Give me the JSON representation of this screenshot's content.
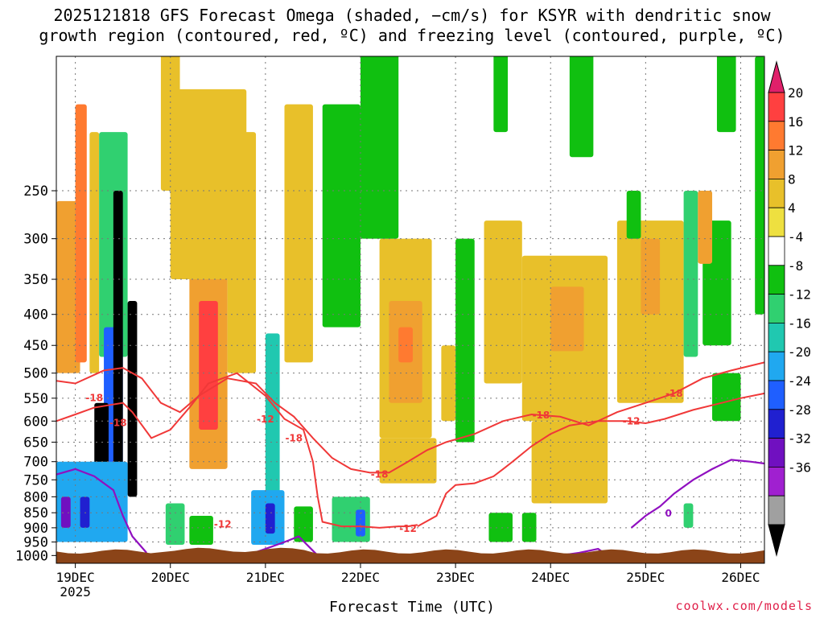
{
  "chart_data": {
    "type": "heatmap",
    "title_line1": "2025121818 GFS Forecast Omega (shaded, −cm/s) for KSYR with dendritic snow",
    "title_line2": "growth region (contoured, red, ºC) and freezing level (contoured, purple, ºC)",
    "xlabel": "Forecast Time (UTC)",
    "xlim": [
      18.8,
      26.25
    ],
    "x_ticks": [
      {
        "v": 19,
        "label": "19DEC"
      },
      {
        "v": 20,
        "label": "20DEC"
      },
      {
        "v": 21,
        "label": "21DEC"
      },
      {
        "v": 22,
        "label": "22DEC"
      },
      {
        "v": 23,
        "label": "23DEC"
      },
      {
        "v": 24,
        "label": "24DEC"
      },
      {
        "v": 25,
        "label": "25DEC"
      },
      {
        "v": 26,
        "label": "26DEC"
      }
    ],
    "x_sublabel": "2025",
    "y_ticks": [
      250,
      300,
      350,
      400,
      450,
      500,
      550,
      600,
      650,
      700,
      750,
      800,
      850,
      900,
      950,
      1000
    ],
    "colorbar_levels": [
      20,
      16,
      12,
      8,
      4,
      -4,
      -8,
      -12,
      -16,
      -20,
      -24,
      -28,
      -32,
      -36
    ],
    "colorbar_colors": [
      "#e0206a",
      "#ff4040",
      "#ff7a30",
      "#f0a030",
      "#e8c02a",
      "#eee040",
      "#ffffff",
      "#10c010",
      "#30d070",
      "#20c8b0",
      "#20a8f0",
      "#1f5fff",
      "#2020d0",
      "#7010c0",
      "#a020d0",
      "#a0a0a0",
      "#000000"
    ],
    "omega_cells": [
      {
        "x0": 18.8,
        "x1": 19.05,
        "p0": 260,
        "p1": 500,
        "v": 12
      },
      {
        "x0": 19.0,
        "x1": 19.12,
        "p0": 180,
        "p1": 480,
        "v": 16
      },
      {
        "x0": 19.15,
        "x1": 19.25,
        "p0": 200,
        "p1": 500,
        "v": 8
      },
      {
        "x0": 19.25,
        "x1": 19.55,
        "p0": 200,
        "p1": 470,
        "v": -14
      },
      {
        "x0": 19.3,
        "x1": 19.5,
        "p0": 420,
        "p1": 900,
        "v": -26
      },
      {
        "x0": 19.2,
        "x1": 19.35,
        "p0": 560,
        "p1": 880,
        "v": -36
      },
      {
        "x0": 19.4,
        "x1": 19.5,
        "p0": 250,
        "p1": 820,
        "v": -36
      },
      {
        "x0": 19.55,
        "x1": 19.65,
        "p0": 380,
        "p1": 800,
        "v": -36
      },
      {
        "x0": 18.8,
        "x1": 19.55,
        "p0": 700,
        "p1": 950,
        "v": -20
      },
      {
        "x0": 18.85,
        "x1": 18.95,
        "p0": 800,
        "p1": 900,
        "v": -32
      },
      {
        "x0": 19.05,
        "x1": 19.15,
        "p0": 800,
        "p1": 900,
        "v": -28
      },
      {
        "x0": 20.2,
        "x1": 20.6,
        "p0": 280,
        "p1": 720,
        "v": 12
      },
      {
        "x0": 20.3,
        "x1": 20.5,
        "p0": 380,
        "p1": 620,
        "v": 20
      },
      {
        "x0": 20.0,
        "x1": 20.75,
        "p0": 250,
        "p1": 350,
        "v": 6
      },
      {
        "x0": 19.95,
        "x1": 20.15,
        "p0": 820,
        "p1": 960,
        "v": -14
      },
      {
        "x0": 20.2,
        "x1": 20.45,
        "p0": 860,
        "p1": 960,
        "v": -10
      },
      {
        "x0": 20.0,
        "x1": 20.8,
        "p0": 170,
        "p1": 280,
        "v": 5
      },
      {
        "x0": 21.0,
        "x1": 21.15,
        "p0": 430,
        "p1": 900,
        "v": -16
      },
      {
        "x0": 20.85,
        "x1": 21.2,
        "p0": 780,
        "p1": 960,
        "v": -22
      },
      {
        "x0": 21.0,
        "x1": 21.1,
        "p0": 820,
        "p1": 920,
        "v": -28
      },
      {
        "x0": 21.3,
        "x1": 21.5,
        "p0": 830,
        "p1": 950,
        "v": -10
      },
      {
        "x0": 20.6,
        "x1": 20.9,
        "p0": 200,
        "p1": 500,
        "v": 6
      },
      {
        "x0": 21.2,
        "x1": 21.5,
        "p0": 180,
        "p1": 480,
        "v": 5
      },
      {
        "x0": 21.6,
        "x1": 22.0,
        "p0": 180,
        "p1": 420,
        "v": -10
      },
      {
        "x0": 21.7,
        "x1": 22.1,
        "p0": 800,
        "p1": 950,
        "v": -12
      },
      {
        "x0": 21.95,
        "x1": 22.05,
        "p0": 840,
        "p1": 930,
        "v": -26
      },
      {
        "x0": 22.2,
        "x1": 22.75,
        "p0": 300,
        "p1": 640,
        "v": 6
      },
      {
        "x0": 22.3,
        "x1": 22.65,
        "p0": 380,
        "p1": 560,
        "v": 12
      },
      {
        "x0": 22.4,
        "x1": 22.55,
        "p0": 420,
        "p1": 480,
        "v": 16
      },
      {
        "x0": 22.2,
        "x1": 22.8,
        "p0": 640,
        "p1": 760,
        "v": 5
      },
      {
        "x0": 23.0,
        "x1": 23.2,
        "p0": 300,
        "p1": 650,
        "v": -8
      },
      {
        "x0": 23.3,
        "x1": 23.7,
        "p0": 280,
        "p1": 520,
        "v": 5
      },
      {
        "x0": 23.35,
        "x1": 23.6,
        "p0": 850,
        "p1": 950,
        "v": -10
      },
      {
        "x0": 23.7,
        "x1": 23.85,
        "p0": 850,
        "p1": 950,
        "v": -10
      },
      {
        "x0": 23.7,
        "x1": 24.6,
        "p0": 320,
        "p1": 600,
        "v": 6
      },
      {
        "x0": 24.0,
        "x1": 24.35,
        "p0": 360,
        "p1": 460,
        "v": 10
      },
      {
        "x0": 23.8,
        "x1": 24.6,
        "p0": 600,
        "p1": 820,
        "v": 5
      },
      {
        "x0": 24.7,
        "x1": 25.4,
        "p0": 280,
        "p1": 560,
        "v": 6
      },
      {
        "x0": 24.95,
        "x1": 25.15,
        "p0": 300,
        "p1": 400,
        "v": 9
      },
      {
        "x0": 25.4,
        "x1": 25.55,
        "p0": 250,
        "p1": 470,
        "v": -12
      },
      {
        "x0": 25.6,
        "x1": 25.9,
        "p0": 280,
        "p1": 450,
        "v": -8
      },
      {
        "x0": 25.55,
        "x1": 25.7,
        "p0": 250,
        "p1": 330,
        "v": 10
      },
      {
        "x0": 25.4,
        "x1": 25.5,
        "p0": 820,
        "p1": 900,
        "v": -14
      },
      {
        "x0": 25.7,
        "x1": 26.0,
        "p0": 500,
        "p1": 600,
        "v": -8
      },
      {
        "x0": 26.15,
        "x1": 26.25,
        "p0": 150,
        "p1": 400,
        "v": -10
      },
      {
        "x0": 25.75,
        "x1": 25.95,
        "p0": 140,
        "p1": 200,
        "v": -8
      },
      {
        "x0": 24.2,
        "x1": 24.45,
        "p0": 130,
        "p1": 220,
        "v": -8
      },
      {
        "x0": 22.0,
        "x1": 22.4,
        "p0": 120,
        "p1": 300,
        "v": -8
      },
      {
        "x0": 19.9,
        "x1": 20.1,
        "p0": 120,
        "p1": 250,
        "v": 6
      },
      {
        "x0": 24.8,
        "x1": 24.95,
        "p0": 250,
        "p1": 300,
        "v": -8
      },
      {
        "x0": 23.4,
        "x1": 23.55,
        "p0": 120,
        "p1": 200,
        "v": -10
      },
      {
        "x0": 22.85,
        "x1": 23.0,
        "p0": 450,
        "p1": 600,
        "v": 6
      }
    ],
    "contours_dgz": [
      {
        "label": "-12",
        "points": [
          [
            18.8,
            600
          ],
          [
            19.0,
            585
          ],
          [
            19.2,
            570
          ],
          [
            19.5,
            560
          ],
          [
            19.6,
            580
          ],
          [
            19.8,
            640
          ],
          [
            20.0,
            620
          ],
          [
            20.2,
            570
          ],
          [
            20.4,
            520
          ],
          [
            20.7,
            500
          ],
          [
            21.0,
            545
          ],
          [
            21.2,
            595
          ],
          [
            21.4,
            620
          ],
          [
            21.5,
            700
          ],
          [
            21.55,
            800
          ],
          [
            21.6,
            880
          ],
          [
            21.8,
            895
          ],
          [
            22.0,
            895
          ],
          [
            22.2,
            900
          ],
          [
            22.4,
            895
          ],
          [
            22.5,
            895
          ],
          [
            22.6,
            890
          ]
        ]
      },
      {
        "label": "-12",
        "points": [
          [
            22.6,
            895
          ],
          [
            22.8,
            860
          ],
          [
            22.9,
            790
          ],
          [
            23.0,
            765
          ],
          [
            23.2,
            760
          ],
          [
            23.4,
            740
          ],
          [
            23.5,
            720
          ],
          [
            23.6,
            700
          ],
          [
            23.8,
            660
          ],
          [
            24.0,
            630
          ],
          [
            24.2,
            610
          ],
          [
            24.5,
            600
          ],
          [
            24.8,
            600
          ],
          [
            25.0,
            605
          ],
          [
            25.2,
            595
          ],
          [
            25.5,
            575
          ],
          [
            25.8,
            560
          ],
          [
            26.0,
            550
          ],
          [
            26.25,
            540
          ]
        ]
      },
      {
        "label": "-18",
        "points": [
          [
            18.8,
            515
          ],
          [
            19.0,
            520
          ],
          [
            19.3,
            495
          ],
          [
            19.5,
            490
          ],
          [
            19.7,
            510
          ],
          [
            19.9,
            560
          ],
          [
            20.1,
            580
          ],
          [
            20.3,
            545
          ],
          [
            20.6,
            510
          ],
          [
            20.9,
            520
          ],
          [
            21.1,
            560
          ],
          [
            21.3,
            590
          ],
          [
            21.5,
            640
          ],
          [
            21.7,
            690
          ],
          [
            21.9,
            720
          ],
          [
            22.1,
            730
          ],
          [
            22.3,
            730
          ],
          [
            22.5,
            700
          ],
          [
            22.7,
            670
          ],
          [
            22.9,
            650
          ],
          [
            23.2,
            630
          ],
          [
            23.5,
            600
          ],
          [
            23.8,
            585
          ],
          [
            24.1,
            590
          ],
          [
            24.4,
            610
          ],
          [
            24.7,
            580
          ],
          [
            25.0,
            560
          ],
          [
            25.3,
            540
          ],
          [
            25.6,
            510
          ],
          [
            25.9,
            495
          ],
          [
            26.25,
            480
          ]
        ]
      }
    ],
    "dgz_label_positions": [
      [
        20.55,
        888
      ],
      [
        22.5,
        903
      ],
      [
        19.2,
        549
      ],
      [
        19.45,
        604
      ],
      [
        21.3,
        640
      ],
      [
        22.2,
        735
      ],
      [
        23.9,
        587
      ],
      [
        25.3,
        540
      ],
      [
        21.0,
        596
      ],
      [
        24.85,
        600
      ]
    ],
    "contours_freezing": [
      {
        "label": "0",
        "points": [
          [
            18.8,
            735
          ],
          [
            19.0,
            720
          ],
          [
            19.2,
            740
          ],
          [
            19.4,
            780
          ],
          [
            19.5,
            860
          ],
          [
            19.6,
            930
          ],
          [
            19.75,
            990
          ]
        ]
      },
      {
        "label": "0",
        "points": [
          [
            20.8,
            1000
          ],
          [
            21.0,
            975
          ],
          [
            21.2,
            950
          ],
          [
            21.35,
            930
          ],
          [
            21.55,
            1000
          ]
        ]
      },
      {
        "label": "0",
        "points": [
          [
            24.1,
            1000
          ],
          [
            24.3,
            990
          ],
          [
            24.5,
            975
          ],
          [
            24.6,
            1000
          ]
        ]
      },
      {
        "label": "0",
        "points": [
          [
            24.85,
            900
          ],
          [
            25.0,
            860
          ],
          [
            25.15,
            830
          ],
          [
            25.3,
            790
          ],
          [
            25.5,
            750
          ],
          [
            25.7,
            720
          ],
          [
            25.9,
            695
          ],
          [
            26.1,
            700
          ],
          [
            26.25,
            705
          ]
        ]
      }
    ],
    "freezing_label_positions": [
      [
        25.24,
        852
      ]
    ],
    "ground_pressure": 985
  },
  "credit": "coolwx.com/models"
}
